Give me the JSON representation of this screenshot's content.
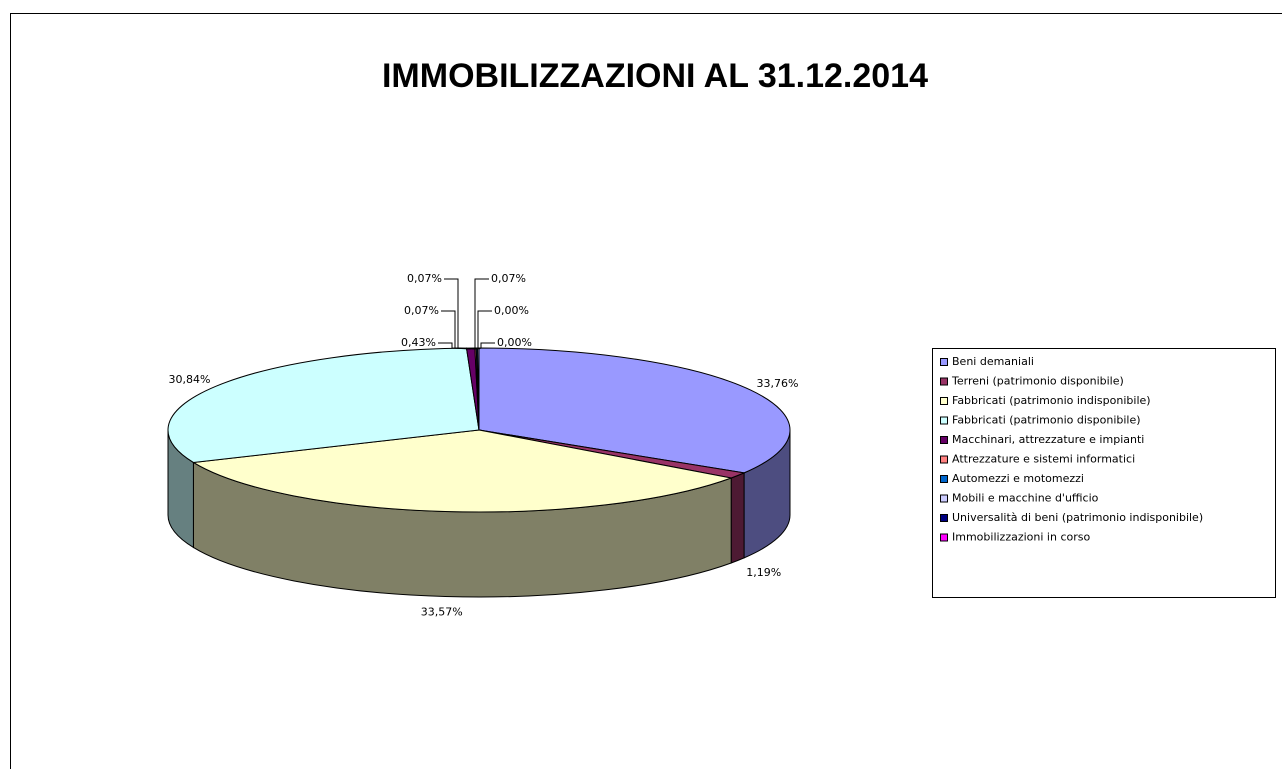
{
  "chart_data": {
    "type": "pie",
    "title": "IMMOBILIZZAZIONI AL 31.12.2014",
    "categories": [
      "Beni demaniali",
      "Terreni (patrimonio disponibile)",
      "Fabbricati (patrimonio indisponibile)",
      "Fabbricati (patrimonio disponibile)",
      "Macchinari, attrezzature e impianti",
      "Attrezzature e sistemi informatici",
      "Automezzi e motomezzi",
      "Mobili e macchine d'ufficio",
      "Universalità di beni (patrimonio indisponibile)",
      "Immobilizzazioni in corso"
    ],
    "values": [
      33.76,
      1.19,
      33.57,
      30.84,
      0.43,
      0.07,
      0.07,
      0.07,
      0.0,
      0.0
    ],
    "value_labels": [
      "33,76%",
      "1,19%",
      "33,57%",
      "30,84%",
      "0,43%",
      "0,07%",
      "0,07%",
      "0,07%",
      "0,00%",
      "0,00%"
    ],
    "colors": [
      "#9999ff",
      "#993366",
      "#ffffcc",
      "#ccffff",
      "#660066",
      "#ff8080",
      "#0066cc",
      "#ccccff",
      "#000080",
      "#ff00ff"
    ],
    "legend": "right"
  }
}
